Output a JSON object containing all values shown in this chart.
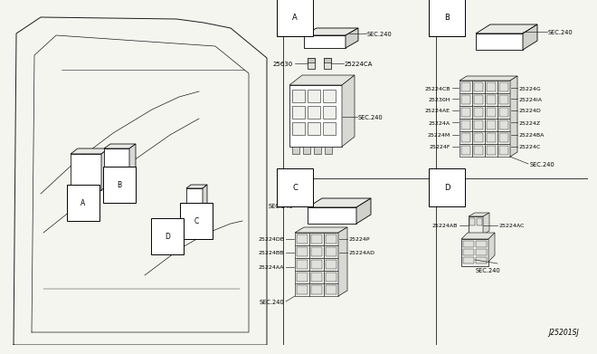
{
  "background_color": "#f5f5f0",
  "line_color": "#1a1a1a",
  "diagram_code": "J25201SJ",
  "fig_width": 6.4,
  "fig_height": 3.72,
  "gray_fill": "#e8e8e4",
  "section_labels": [
    "A",
    "B",
    "C",
    "D"
  ],
  "part_A": {
    "sec240_1": "SEC.240",
    "sec240_2": "SEC.240",
    "p1": "25630",
    "p2": "25224CA"
  },
  "part_B": {
    "sec240": "SEC.240",
    "sec240_2": "SEC.240",
    "left": [
      "25224CB",
      "25230H",
      "25224AE",
      "25224A",
      "25224M",
      "25224F"
    ],
    "right": [
      "25224G",
      "25224IA",
      "25224D",
      "25224Z",
      "25224BA",
      "25224C"
    ]
  },
  "part_C": {
    "sec240_1": "SEC.240",
    "sec240_2": "SEC.240",
    "p1": "25224DB",
    "p2": "25224BB",
    "p3": "25224P",
    "p4": "25224AA",
    "p5": "25224AD"
  },
  "part_D": {
    "sec240": "SEC.240",
    "p1": "25224AB",
    "p2": "25224AC"
  },
  "hood": {
    "outer_x": [
      5,
      285,
      285,
      245,
      215,
      185,
      35,
      8,
      5
    ],
    "outer_y": [
      372,
      372,
      55,
      22,
      16,
      12,
      10,
      28,
      372
    ],
    "inner_x": [
      25,
      265,
      265,
      228,
      52,
      28,
      25
    ],
    "inner_y": [
      358,
      358,
      72,
      42,
      30,
      52,
      358
    ],
    "curve1_x": [
      35,
      75,
      115,
      158,
      188,
      210
    ],
    "curve1_y": [
      205,
      168,
      138,
      112,
      98,
      92
    ],
    "curve2_x": [
      38,
      88,
      138,
      178,
      210
    ],
    "curve2_y": [
      248,
      208,
      168,
      140,
      122
    ],
    "curve3_x": [
      150,
      190,
      220,
      245,
      258
    ],
    "curve3_y": [
      295,
      265,
      248,
      238,
      235
    ]
  }
}
